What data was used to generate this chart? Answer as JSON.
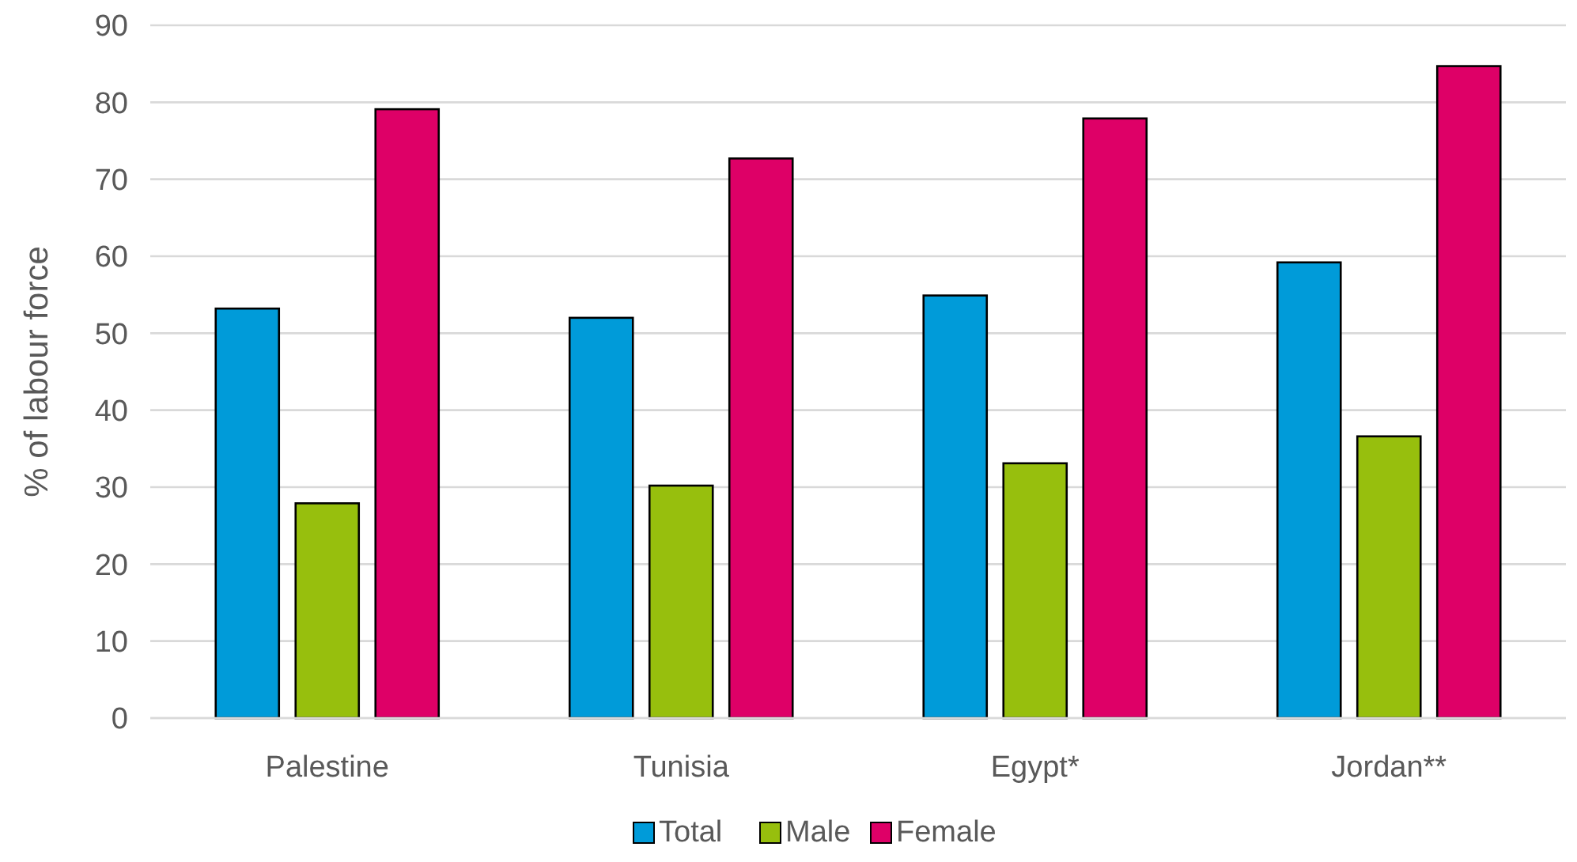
{
  "chart_data": {
    "type": "bar",
    "ylabel": "% of labour force",
    "categories": [
      "Palestine",
      "Tunisia",
      "Egypt*",
      "Jordan**"
    ],
    "series": [
      {
        "name": "Total",
        "color": "#009bd9",
        "values": [
          53.2,
          52.0,
          54.9,
          59.2
        ]
      },
      {
        "name": "Male",
        "color": "#97bf0d",
        "values": [
          27.9,
          30.2,
          33.1,
          36.6
        ]
      },
      {
        "name": "Female",
        "color": "#de0067",
        "values": [
          79.1,
          72.7,
          77.9,
          84.7
        ]
      }
    ],
    "ylim": [
      0,
      90
    ],
    "yticks": [
      0,
      10,
      20,
      30,
      40,
      50,
      60,
      70,
      80,
      90
    ],
    "grid": "y",
    "legend": "bottom"
  }
}
